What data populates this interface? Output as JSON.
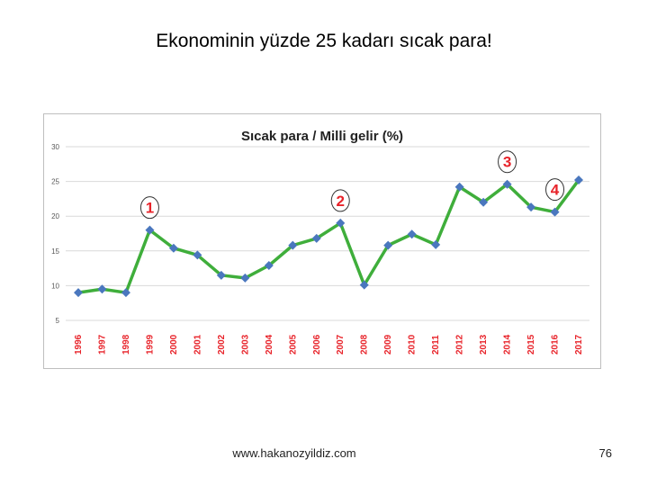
{
  "slide": {
    "title": "Ekonominin yüzde 25 kadarı sıcak para!",
    "footer_url": "www.hakanozyildiz.com",
    "page_number": "76"
  },
  "colors": {
    "line": "#3fae3b",
    "marker": "#4a77be",
    "year_labels": "#e8232a",
    "annotation": "#e8232a",
    "grid": "#d9d9d9"
  },
  "chart_data": {
    "type": "line",
    "title": "Sıcak para / Milli gelir (%)",
    "xlabel": "",
    "ylabel": "",
    "categories": [
      "1996",
      "1997",
      "1998",
      "1999",
      "2000",
      "2001",
      "2002",
      "2003",
      "2004",
      "2005",
      "2006",
      "2007",
      "2008",
      "2009",
      "2010",
      "2011",
      "2012",
      "2013",
      "2014",
      "2015",
      "2016",
      "2017"
    ],
    "series": [
      {
        "values": [
          9.0,
          9.5,
          9.0,
          18.0,
          15.4,
          14.4,
          11.5,
          11.1,
          12.9,
          15.8,
          16.8,
          19.0,
          10.1,
          15.8,
          17.4,
          15.9,
          24.2,
          22.0,
          24.6,
          21.3,
          20.6,
          25.2
        ]
      }
    ],
    "yticks": [
      "30",
      "25",
      "20",
      "15",
      "10",
      "5"
    ],
    "ylim": [
      5,
      30
    ],
    "grid": true,
    "annotations": [
      {
        "label": "1",
        "year": "1999"
      },
      {
        "label": "2",
        "year": "2007"
      },
      {
        "label": "3",
        "year": "2014"
      },
      {
        "label": "4",
        "year": "2016"
      }
    ]
  }
}
